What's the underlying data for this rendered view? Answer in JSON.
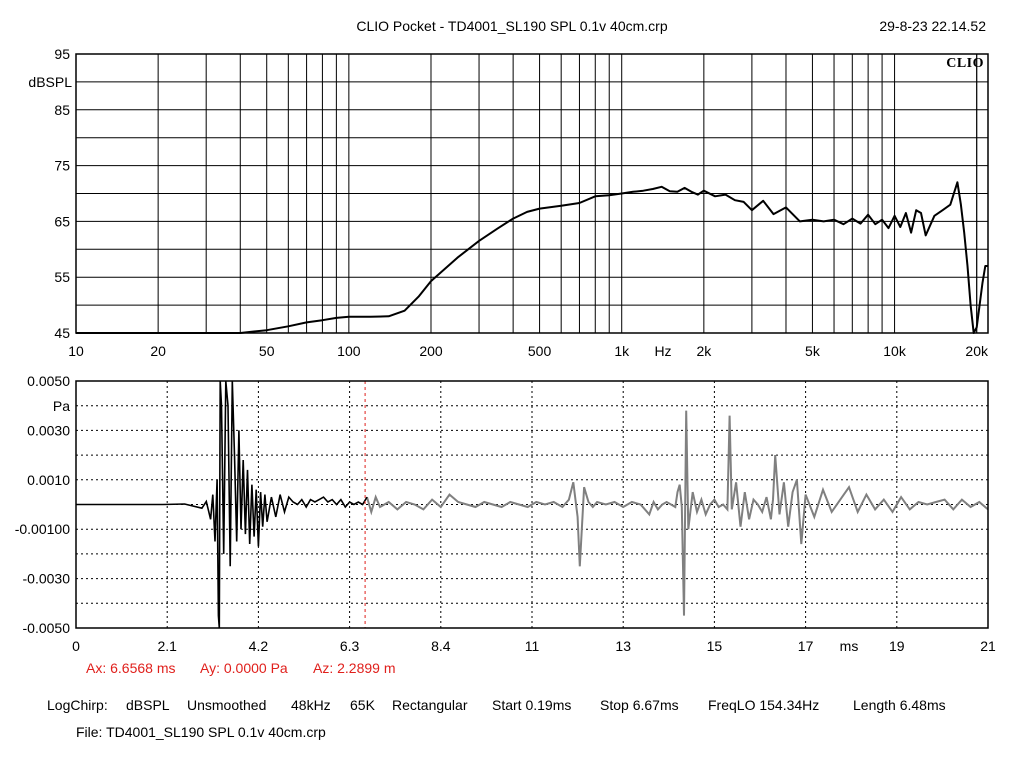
{
  "header": {
    "title": "CLIO Pocket - TD4001_SL190 SPL 0.1v 40cm.crp",
    "timestamp": "29-8-23 22.14.52",
    "logo": "CLIO"
  },
  "colors": {
    "trace": "#000000",
    "gated_out": "#808080",
    "cursor": "#e0201c",
    "grid": "#000000"
  },
  "cursor_readout": {
    "ax": "Ax: 6.6568 ms",
    "ay": "Ay: 0.0000 Pa",
    "az": "Az: 2.2899 m"
  },
  "footer": {
    "settings": [
      "LogChirp:",
      "dBSPL",
      "Unsmoothed",
      "48kHz",
      "65K",
      "Rectangular",
      "Start 0.19ms",
      "Stop 6.67ms",
      "FreqLO 154.34Hz",
      "Length 6.48ms"
    ],
    "file": "File: TD4001_SL190 SPL 0.1v 40cm.crp"
  },
  "chart_data": [
    {
      "type": "line",
      "x_scale": "log",
      "xlim": [
        10,
        22000
      ],
      "ylim": [
        45,
        95
      ],
      "ylabel": "dBSPL",
      "xunit": "Hz",
      "xticks": [
        "10",
        "20",
        "50",
        "100",
        "200",
        "500",
        "1k",
        "2k",
        "5k",
        "10k",
        "20k"
      ],
      "xtick_values": [
        10,
        20,
        50,
        100,
        200,
        500,
        1000,
        2000,
        5000,
        10000,
        20000
      ],
      "yticks": [
        "95",
        "85",
        "75",
        "65",
        "55",
        "45"
      ],
      "ytick_values": [
        95,
        85,
        75,
        65,
        55,
        45
      ],
      "grid": true,
      "series": [
        {
          "x": [
            10,
            20,
            40,
            50,
            60,
            70,
            80,
            90,
            100,
            120,
            140,
            160,
            180,
            200,
            250,
            300,
            350,
            400,
            450,
            500,
            600,
            700,
            800,
            900,
            1000,
            1100,
            1200,
            1300,
            1400,
            1500,
            1600,
            1700,
            1800,
            1900,
            2000,
            2200,
            2400,
            2600,
            2800,
            3000,
            3300,
            3600,
            4000,
            4500,
            5000,
            5500,
            6000,
            6500,
            7000,
            7500,
            8000,
            8500,
            9000,
            9500,
            10000,
            10500,
            11000,
            11500,
            12000,
            12500,
            13000,
            14000,
            15000,
            16000,
            17000,
            17500,
            18000,
            18500,
            19000,
            19500,
            20000,
            20500,
            21000,
            21500,
            22000
          ],
          "y": [
            45,
            45,
            45,
            45.5,
            46.2,
            46.9,
            47.3,
            47.7,
            47.9,
            47.9,
            48.0,
            49.0,
            51.5,
            54.3,
            58.5,
            61.5,
            63.7,
            65.5,
            66.7,
            67.3,
            67.8,
            68.3,
            69.5,
            69.7,
            70.0,
            70.3,
            70.5,
            70.8,
            71.2,
            70.4,
            70.3,
            71.0,
            70.3,
            69.8,
            70.5,
            69.5,
            69.8,
            68.8,
            68.5,
            67.0,
            68.7,
            66.3,
            67.5,
            65.0,
            65.3,
            65.0,
            65.3,
            64.5,
            65.5,
            64.6,
            66.2,
            64.5,
            65.3,
            63.8,
            66.0,
            64.0,
            66.5,
            63.0,
            67.0,
            66.5,
            62.5,
            66.0,
            67.0,
            68.0,
            72.0,
            68.0,
            63.0,
            57.0,
            50.0,
            45.0,
            46.0,
            50.0,
            54.0,
            57.0,
            57.0
          ]
        }
      ]
    },
    {
      "type": "line",
      "xlim": [
        0,
        21
      ],
      "ylim": [
        -0.005,
        0.005
      ],
      "ylabel": "Pa",
      "xunit": "ms",
      "xticks": [
        "0",
        "2.1",
        "4.2",
        "6.3",
        "8.4",
        "11",
        "13",
        "15",
        "17",
        "19",
        "21"
      ],
      "xtick_values": [
        0,
        2.1,
        4.2,
        6.3,
        8.4,
        10.5,
        12.6,
        14.7,
        16.8,
        18.9,
        21
      ],
      "yticks": [
        "0.0050",
        "0.0030",
        "0.0010",
        "-0.00100",
        "-0.0030",
        "-0.0050"
      ],
      "ytick_values": [
        0.005,
        0.003,
        0.001,
        -0.001,
        -0.003,
        -0.005
      ],
      "grid": true,
      "cursor_x": 6.6568,
      "gate": {
        "start": 0.19,
        "stop": 6.67
      },
      "series": [
        {
          "x": [
            0,
            1.0,
            2.0,
            2.5,
            2.9,
            3.0,
            3.1,
            3.15,
            3.2,
            3.25,
            3.28,
            3.3,
            3.32,
            3.35,
            3.4,
            3.45,
            3.5,
            3.55,
            3.6,
            3.65,
            3.7,
            3.75,
            3.8,
            3.85,
            3.9,
            3.95,
            4.0,
            4.05,
            4.1,
            4.15,
            4.2,
            4.25,
            4.3,
            4.35,
            4.4,
            4.5,
            4.6,
            4.7,
            4.8,
            4.9,
            5.0,
            5.1,
            5.2,
            5.3,
            5.4,
            5.5,
            5.6,
            5.7,
            5.8,
            5.9,
            6.0,
            6.1,
            6.2,
            6.3,
            6.4,
            6.5,
            6.6,
            6.7,
            6.8,
            6.9,
            7.0,
            7.2,
            7.4,
            7.6,
            7.8,
            8.0,
            8.2,
            8.4,
            8.6,
            8.8,
            9.0,
            9.2,
            9.4,
            9.6,
            9.8,
            10.0,
            10.2,
            10.4,
            10.6,
            10.8,
            11.0,
            11.2,
            11.35,
            11.45,
            11.55,
            11.6,
            11.7,
            11.8,
            11.9,
            12.0,
            12.2,
            12.4,
            12.6,
            12.8,
            13.0,
            13.2,
            13.3,
            13.4,
            13.5,
            13.6,
            13.7,
            13.8,
            13.85,
            13.9,
            13.95,
            14.0,
            14.05,
            14.1,
            14.2,
            14.3,
            14.4,
            14.5,
            14.6,
            14.7,
            14.8,
            14.9,
            15.0,
            15.05,
            15.1,
            15.2,
            15.3,
            15.4,
            15.5,
            15.6,
            15.7,
            15.8,
            15.9,
            16.0,
            16.05,
            16.1,
            16.2,
            16.3,
            16.4,
            16.5,
            16.6,
            16.7,
            16.8,
            17.0,
            17.2,
            17.4,
            17.6,
            17.8,
            18.0,
            18.2,
            18.4,
            18.6,
            18.8,
            19.0,
            19.2,
            19.4,
            19.6,
            19.8,
            20.0,
            20.2,
            20.4,
            20.6,
            20.8,
            21.0
          ],
          "y": [
            0,
            0,
            0,
            2e-05,
            -0.00015,
            0.00012,
            -0.0006,
            0.0004,
            -0.0015,
            0.001,
            -0.0045,
            -0.005,
            0.005,
            0.004,
            -0.002,
            0.005,
            0.004,
            -0.0025,
            0.005,
            0.002,
            -0.0015,
            0.003,
            -0.001,
            0.0018,
            -0.0012,
            0.0014,
            -0.0016,
            0.0008,
            -0.0013,
            0.0006,
            -0.0017,
            0.0005,
            -0.0009,
            0.0004,
            -0.0007,
            0.0003,
            -0.0005,
            0.0004,
            -0.0003,
            0.0003,
            0.0001,
            0,
            0.0002,
            -0.0001,
            0.0002,
            0.0001,
            0.0002,
            0.0003,
            0.0001,
            0.0002,
            0,
            0.0002,
            -0.0001,
            0.0001,
            0,
            0.0001,
            0,
            0.0003,
            -0.0003,
            0.0003,
            -0.0001,
            0.0001,
            -0.0002,
            0.0001,
            0,
            -0.0002,
            0.0002,
            -0.0001,
            0.0004,
            0.0001,
            0,
            -0.0001,
            0.0001,
            0,
            -0.0001,
            0.0001,
            0,
            -0.0001,
            0.0001,
            0,
            0.0001,
            -0.0001,
            0.0002,
            0.0009,
            -0.0005,
            -0.0025,
            0.0007,
            0.0001,
            -0.0001,
            0.0001,
            0,
            0.0001,
            -0.0001,
            0.0001,
            0,
            -0.0004,
            0.0001,
            -0.0002,
            0,
            0.0001,
            0,
            -0.0001,
            0.0005,
            0.0008,
            -0.0001,
            -0.0045,
            0.0038,
            -0.001,
            0.0005,
            -0.0003,
            0.0002,
            -0.0004,
            0,
            0.0002,
            -0.0001,
            0,
            -0.0002,
            0.0036,
            -0.0002,
            0.0009,
            -0.0009,
            0.0005,
            -0.0006,
            0.0002,
            0,
            -0.0003,
            0.0003,
            -0.0006,
            0.0002,
            0.002,
            -0.0004,
            0.0009,
            -0.0009,
            0.0005,
            0.001,
            -0.0016,
            0.0004,
            -0.0005,
            0.0006,
            -0.0003,
            0.0002,
            0.0007,
            -0.0003,
            0.0004,
            -0.0002,
            0.0002,
            -0.0003,
            0.0003,
            -0.0002,
            0.0001,
            0,
            0.0001,
            0.0002,
            -0.0002,
            0.0002,
            -0.0001,
            0.0001,
            -0.0002
          ]
        }
      ]
    }
  ]
}
